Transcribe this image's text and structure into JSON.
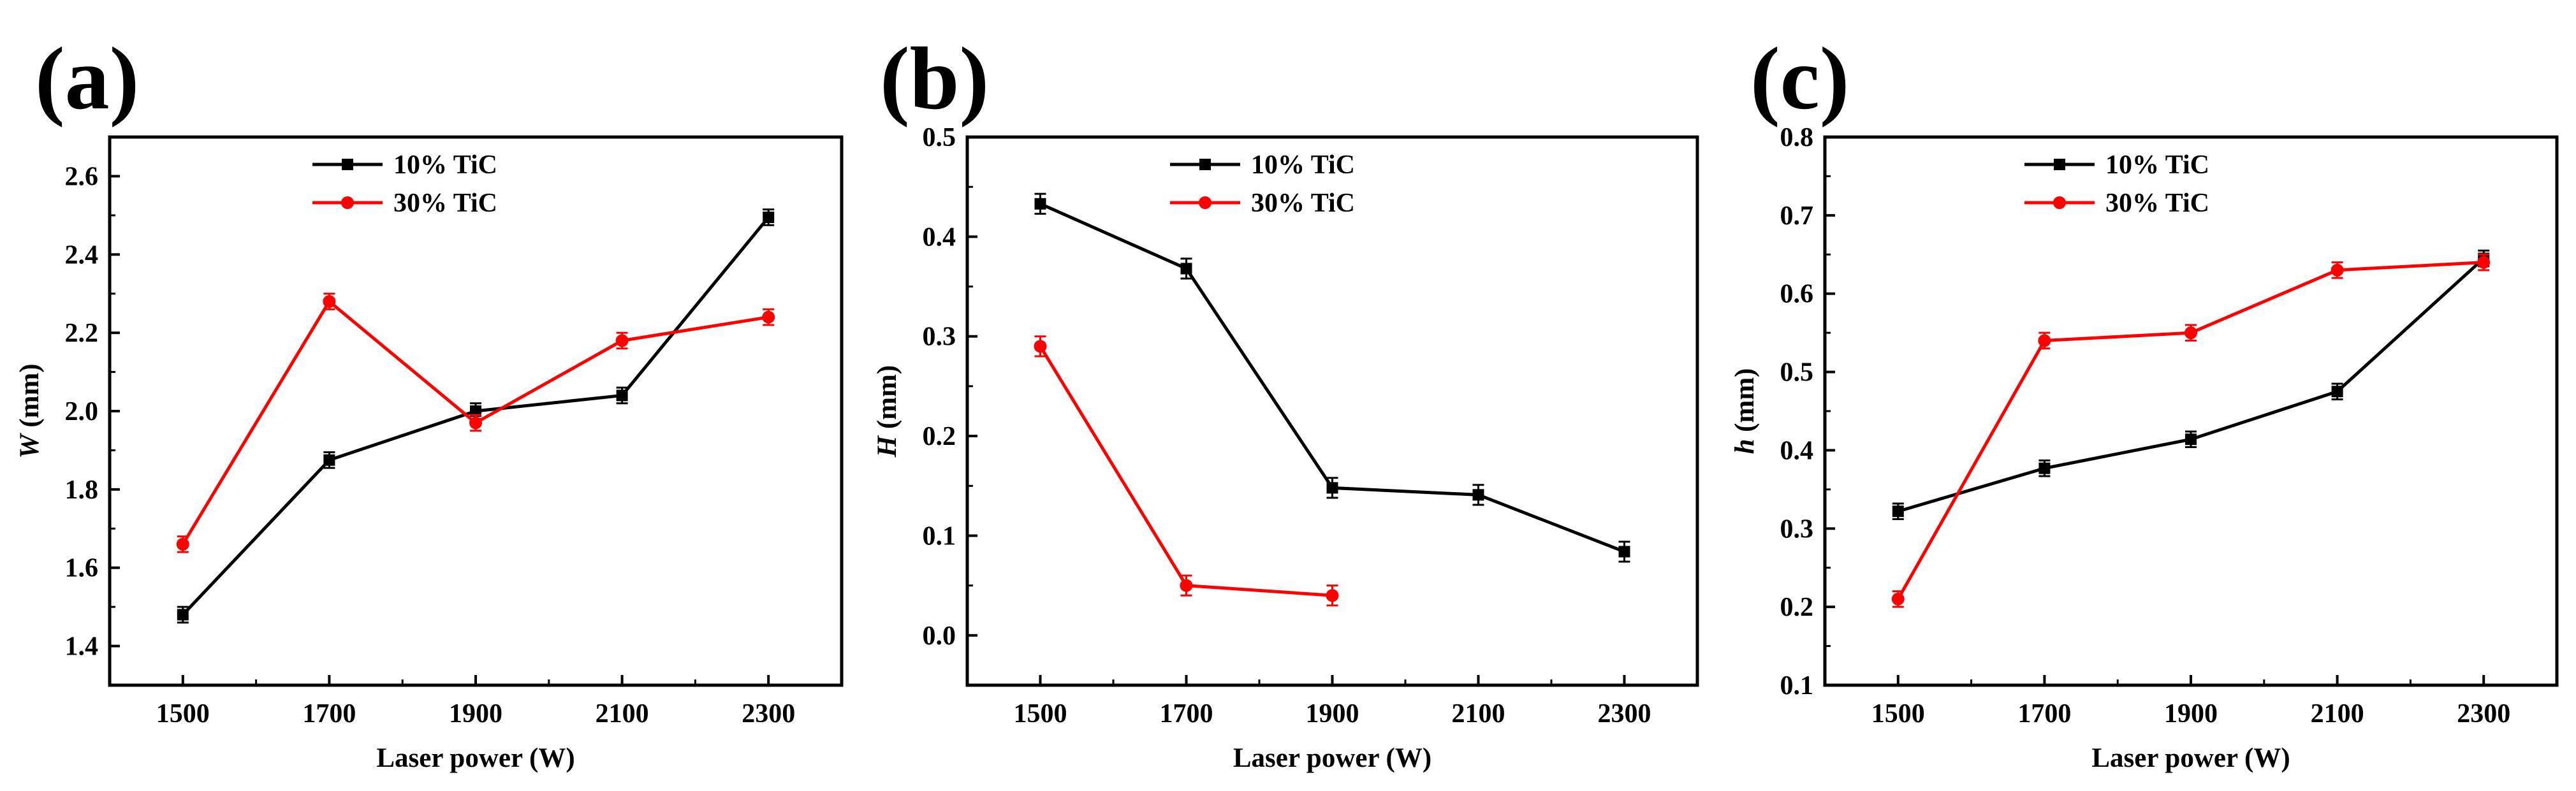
{
  "chart_data": [
    {
      "type": "line",
      "panel_label": "(a)",
      "xlabel": "Laser power (W)",
      "ylabel_var": "W",
      "ylabel_unit": " (mm)",
      "x": [
        1500,
        1700,
        1900,
        2100,
        2300
      ],
      "xlim": [
        1400,
        2400
      ],
      "ylim": [
        1.3,
        2.7
      ],
      "yticks": [
        1.4,
        1.6,
        1.8,
        2.0,
        2.2,
        2.4,
        2.6
      ],
      "ytick_labels": [
        "1.4",
        "1.6",
        "1.8",
        "2.0",
        "2.2",
        "2.4",
        "2.6"
      ],
      "xtick_labels": [
        "1500",
        "1700",
        "1900",
        "2100",
        "2300"
      ],
      "legend_position": "top-center",
      "series": [
        {
          "name": "10% TiC",
          "color": "#000000",
          "marker": "square",
          "values": [
            1.48,
            1.875,
            2.0,
            2.04,
            2.495
          ],
          "error": [
            0.02,
            0.02,
            0.02,
            0.02,
            0.02
          ]
        },
        {
          "name": "30% TiC",
          "color": "#ff0000",
          "marker": "circle",
          "values": [
            1.66,
            2.28,
            1.97,
            2.18,
            2.24
          ],
          "error": [
            0.02,
            0.02,
            0.02,
            0.02,
            0.02
          ]
        }
      ]
    },
    {
      "type": "line",
      "panel_label": "(b)",
      "xlabel": "Laser power (W)",
      "ylabel_var": "H",
      "ylabel_unit": " (mm)",
      "x": [
        1500,
        1700,
        1900,
        2100,
        2300
      ],
      "xlim": [
        1400,
        2400
      ],
      "ylim": [
        -0.05,
        0.5
      ],
      "yticks": [
        0.0,
        0.1,
        0.2,
        0.3,
        0.4,
        0.5
      ],
      "ytick_labels": [
        "0.0",
        "0.1",
        "0.2",
        "0.3",
        "0.4",
        "0.5"
      ],
      "xtick_labels": [
        "1500",
        "1700",
        "1900",
        "2100",
        "2300"
      ],
      "legend_position": "top-center",
      "series": [
        {
          "name": "10% TiC",
          "color": "#000000",
          "marker": "square",
          "values": [
            0.433,
            0.368,
            0.148,
            0.141,
            0.084
          ],
          "error": [
            0.01,
            0.01,
            0.01,
            0.01,
            0.01
          ]
        },
        {
          "name": "30% TiC",
          "color": "#ff0000",
          "marker": "circle",
          "values": [
            0.29,
            0.05,
            0.04,
            null,
            null
          ],
          "error": [
            0.01,
            0.01,
            0.01,
            null,
            null
          ]
        }
      ]
    },
    {
      "type": "line",
      "panel_label": "(c)",
      "xlabel": "Laser power (W)",
      "ylabel_var": "h",
      "ylabel_unit": " (mm)",
      "x": [
        1500,
        1700,
        1900,
        2100,
        2300
      ],
      "xlim": [
        1400,
        2400
      ],
      "ylim": [
        0.1,
        0.8
      ],
      "yticks": [
        0.1,
        0.2,
        0.3,
        0.4,
        0.5,
        0.6,
        0.7,
        0.8
      ],
      "ytick_labels": [
        "0.1",
        "0.2",
        "0.3",
        "0.4",
        "0.5",
        "0.6",
        "0.7",
        "0.8"
      ],
      "xtick_labels": [
        "1500",
        "1700",
        "1900",
        "2100",
        "2300"
      ],
      "legend_position": "top-left",
      "series": [
        {
          "name": "10% TiC",
          "color": "#000000",
          "marker": "square",
          "values": [
            0.322,
            0.377,
            0.414,
            0.475,
            0.645
          ],
          "error": [
            0.01,
            0.01,
            0.01,
            0.01,
            0.01
          ]
        },
        {
          "name": "30% TiC",
          "color": "#ff0000",
          "marker": "circle",
          "values": [
            0.21,
            0.54,
            0.55,
            0.63,
            0.64
          ],
          "error": [
            0.01,
            0.01,
            0.01,
            0.01,
            0.01
          ]
        }
      ]
    }
  ]
}
